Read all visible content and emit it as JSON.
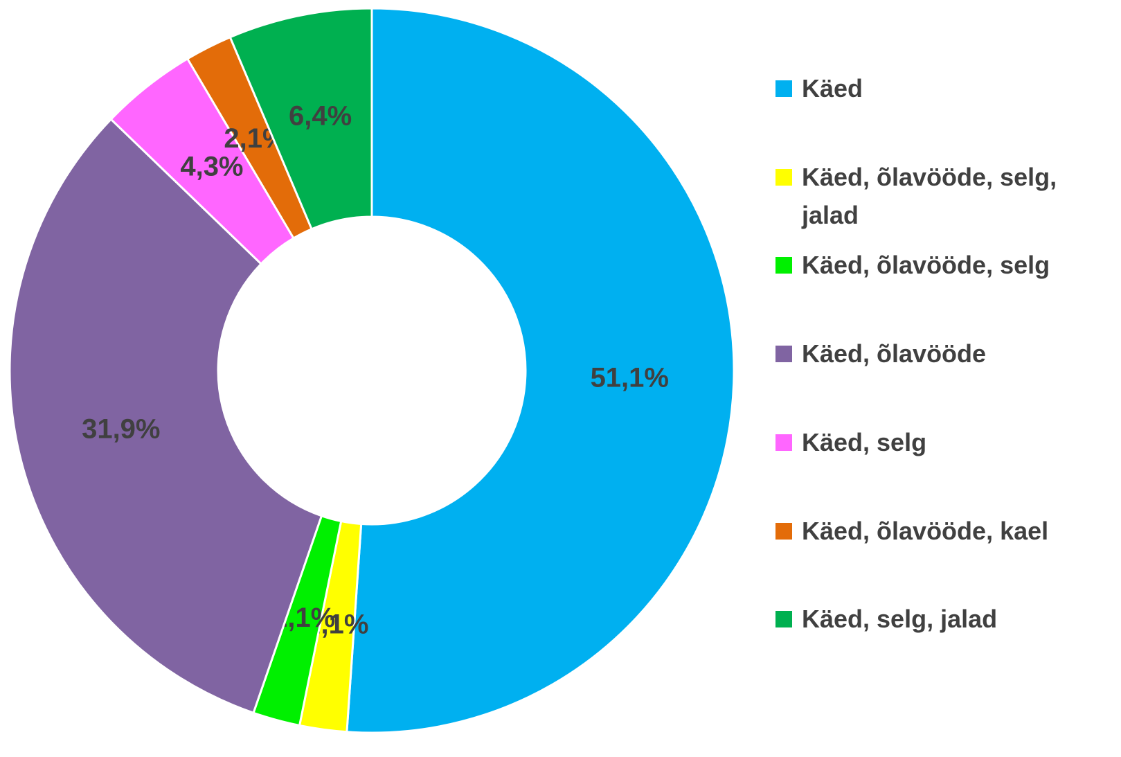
{
  "chart_data": {
    "type": "donut",
    "categories": [
      "Käed",
      "Käed, õlavööde, selg, jalad",
      "Käed, õlavööde, selg",
      "Käed, õlavööde",
      "Käed, selg",
      "Käed, õlavööde, kael",
      "Käed, selg, jalad"
    ],
    "values": [
      51.1,
      2.1,
      2.1,
      31.9,
      4.3,
      2.1,
      6.4
    ],
    "value_labels": [
      "51,1%",
      "2,1%",
      "2,1%",
      "31,9%",
      "4,3%",
      "2,1%",
      "6,4%"
    ],
    "colors": [
      "#00b0f0",
      "#ffff00",
      "#00f000",
      "#8064a2",
      "#ff66ff",
      "#e36c09",
      "#00b050"
    ],
    "legend": "right"
  }
}
